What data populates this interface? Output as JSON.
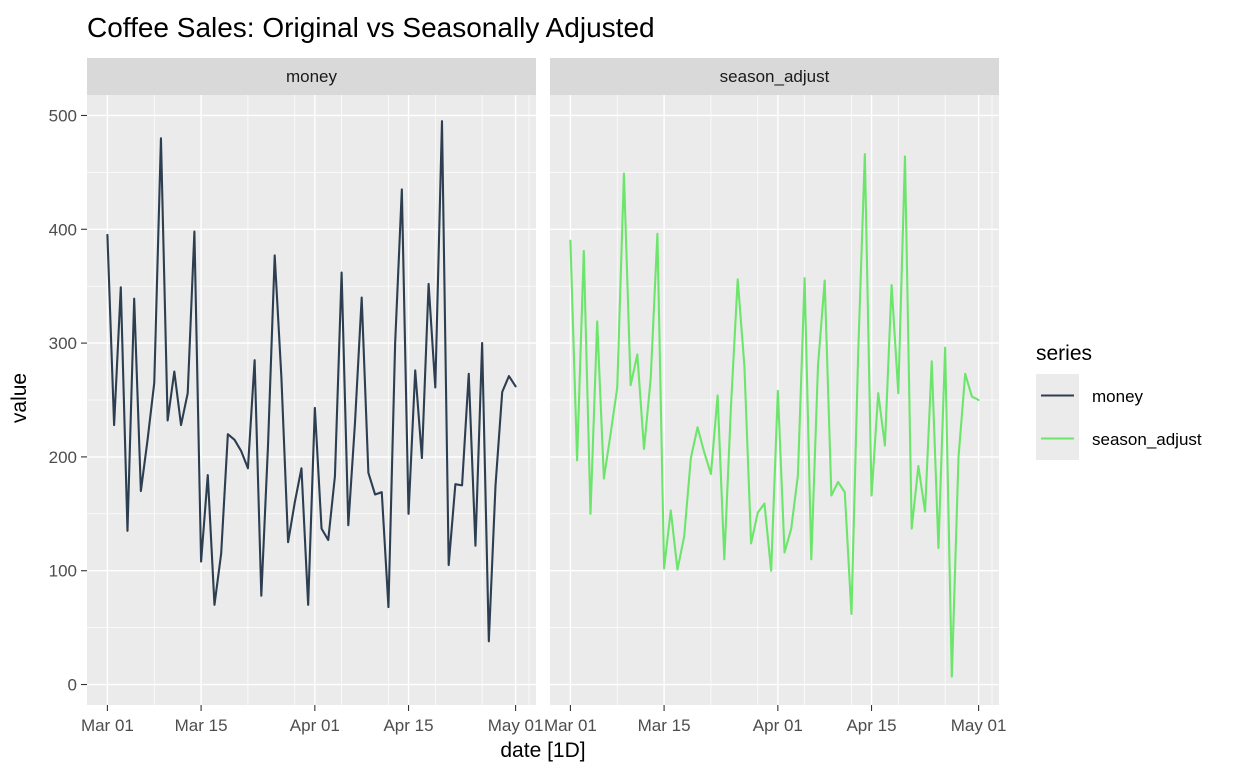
{
  "chart_data": {
    "type": "line",
    "title": "Coffee Sales: Original vs Seasonally Adjusted",
    "xlabel": "date [1D]",
    "ylabel": "value",
    "facets": [
      "money",
      "season_adjust"
    ],
    "x_ticks": [
      "Mar 01",
      "Mar 15",
      "Apr 01",
      "Apr 15",
      "May 01"
    ],
    "y_ticks": [
      0,
      100,
      200,
      300,
      400,
      500
    ],
    "ylim": [
      -18,
      518
    ],
    "grid": true,
    "legend": {
      "title": "series",
      "position": "right"
    },
    "x": [
      "2024-03-01",
      "2024-03-02",
      "2024-03-03",
      "2024-03-04",
      "2024-03-05",
      "2024-03-06",
      "2024-03-07",
      "2024-03-08",
      "2024-03-09",
      "2024-03-10",
      "2024-03-11",
      "2024-03-12",
      "2024-03-13",
      "2024-03-14",
      "2024-03-15",
      "2024-03-16",
      "2024-03-17",
      "2024-03-18",
      "2024-03-19",
      "2024-03-20",
      "2024-03-21",
      "2024-03-22",
      "2024-03-23",
      "2024-03-24",
      "2024-03-25",
      "2024-03-26",
      "2024-03-27",
      "2024-03-28",
      "2024-03-29",
      "2024-03-30",
      "2024-03-31",
      "2024-04-01",
      "2024-04-02",
      "2024-04-03",
      "2024-04-04",
      "2024-04-05",
      "2024-04-06",
      "2024-04-07",
      "2024-04-08",
      "2024-04-09",
      "2024-04-10",
      "2024-04-11",
      "2024-04-12",
      "2024-04-13",
      "2024-04-14",
      "2024-04-15",
      "2024-04-16",
      "2024-04-17",
      "2024-04-18",
      "2024-04-19",
      "2024-04-20",
      "2024-04-21",
      "2024-04-22",
      "2024-04-23",
      "2024-04-24",
      "2024-04-25",
      "2024-04-26",
      "2024-04-27",
      "2024-04-28",
      "2024-04-29",
      "2024-04-30",
      "2024-05-01"
    ],
    "series": [
      {
        "name": "money",
        "color": "#2c3e50",
        "values": [
          395,
          228,
          349,
          135,
          339,
          170,
          215,
          265,
          480,
          232,
          275,
          228,
          256,
          398,
          108,
          184,
          70,
          115,
          220,
          215,
          205,
          190,
          285,
          78,
          210,
          377,
          270,
          125,
          160,
          190,
          70,
          243,
          137,
          127,
          183,
          362,
          140,
          230,
          340,
          186,
          167,
          169,
          68,
          300,
          435,
          150,
          276,
          199,
          352,
          261,
          495,
          105,
          176,
          175,
          273,
          122,
          300,
          38,
          175,
          257,
          271,
          262
        ]
      },
      {
        "name": "season_adjust",
        "color": "#6ce56b",
        "values": [
          390,
          197,
          381,
          150,
          319,
          181,
          220,
          261,
          449,
          263,
          290,
          207,
          269,
          396,
          102,
          153,
          101,
          130,
          199,
          226,
          204,
          185,
          254,
          110,
          245,
          356,
          280,
          124,
          151,
          159,
          100,
          258,
          116,
          137,
          184,
          357,
          110,
          280,
          355,
          166,
          178,
          169,
          62,
          290,
          466,
          166,
          256,
          210,
          351,
          256,
          464,
          137,
          192,
          152,
          284,
          120,
          296,
          7,
          200,
          273,
          253,
          250
        ]
      }
    ]
  }
}
